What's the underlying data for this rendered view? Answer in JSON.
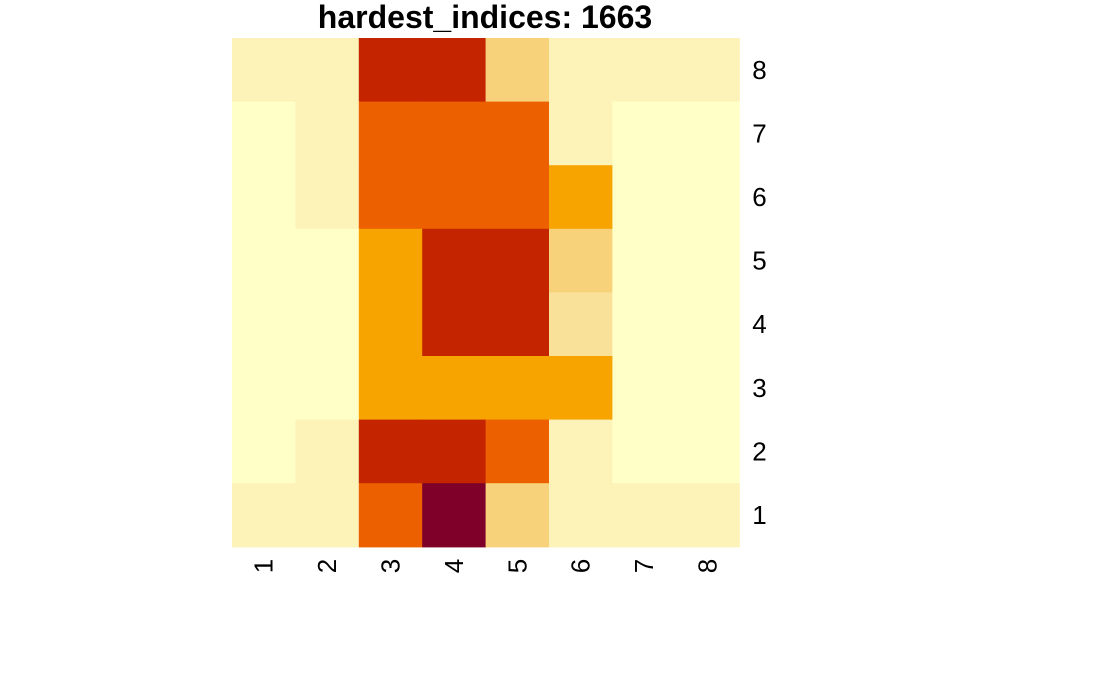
{
  "chart_data": {
    "type": "heatmap",
    "title": "hardest_indices: 1663",
    "x_tick_labels": [
      "1",
      "2",
      "3",
      "4",
      "5",
      "6",
      "7",
      "8"
    ],
    "y_tick_labels": [
      "1",
      "2",
      "3",
      "4",
      "5",
      "6",
      "7",
      "8"
    ],
    "legend": "none",
    "grid": false,
    "value_range": [
      0,
      8
    ],
    "color_scale": [
      "#FFFFC8",
      "#FDF2B7",
      "#FAE19A",
      "#F8D27B",
      "#F7BC3F",
      "#F7A400",
      "#EC6000",
      "#E13A00",
      "#C42400",
      "#A40800",
      "#7F0029"
    ],
    "rows_top_to_bottom": [
      [
        0.4,
        1.0,
        6.7,
        6.0,
        2.3,
        0.4,
        0.4,
        0.4
      ],
      [
        0.0,
        1.0,
        5.0,
        5.0,
        5.0,
        1.0,
        0.0,
        0.0
      ],
      [
        0.0,
        0.4,
        5.0,
        5.0,
        5.0,
        4.0,
        0.0,
        0.0
      ],
      [
        0.0,
        0.0,
        4.0,
        6.0,
        6.0,
        2.0,
        0.0,
        0.0
      ],
      [
        0.0,
        0.0,
        4.0,
        6.0,
        6.0,
        1.5,
        0.0,
        0.0
      ],
      [
        0.0,
        0.0,
        4.0,
        4.0,
        4.0,
        4.0,
        0.0,
        0.0
      ],
      [
        0.0,
        0.4,
        6.0,
        6.0,
        5.0,
        0.4,
        0.0,
        0.0
      ],
      [
        0.4,
        1.0,
        5.0,
        8.0,
        2.0,
        0.4,
        0.4,
        0.4
      ]
    ]
  }
}
